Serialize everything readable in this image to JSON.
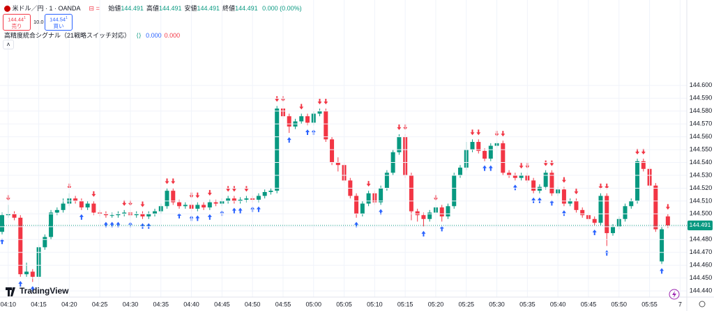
{
  "chart_data": {
    "type": "candlestick",
    "title": "米ドル／円 · 1 · OANDA",
    "ohlc_legend": [
      {
        "label": "始値",
        "value": 144.491
      },
      {
        "label": "高値",
        "value": 144.491
      },
      {
        "label": "安値",
        "value": 144.491
      },
      {
        "label": "終値",
        "value": 144.491
      }
    ],
    "change": "0.000 (0.00%)",
    "sell_button": {
      "price": "144.44",
      "superscript": "1",
      "label": "売り"
    },
    "spread": "10.0",
    "buy_button": {
      "price": "144.54",
      "superscript": "1",
      "label": "買い"
    },
    "indicator": {
      "name": "高精度統合シグナル（21戦略スイッチ対応）",
      "values": [
        {
          "value": "0.000",
          "color": "#2962ff"
        },
        {
          "value": "0.000",
          "color": "#f23645"
        }
      ]
    },
    "brand": "TradingView",
    "up_color": "#089981",
    "down_color": "#f23645",
    "last_price": 144.491,
    "ylim": [
      144.4352,
      144.6665
    ],
    "yticks": [
      {
        "value": 144.44,
        "label": "144.440"
      },
      {
        "value": 144.45,
        "label": "144.450"
      },
      {
        "value": 144.46,
        "label": "144.460"
      },
      {
        "value": 144.47,
        "label": "144.470"
      },
      {
        "value": 144.48,
        "label": "144.480"
      },
      {
        "value": 144.49,
        "label": "144.490"
      },
      {
        "value": 144.5,
        "label": "144.500"
      },
      {
        "value": 144.51,
        "label": "144.510"
      },
      {
        "value": 144.52,
        "label": "144.520"
      },
      {
        "value": 144.53,
        "label": "144.530"
      },
      {
        "value": 144.54,
        "label": "144.540"
      },
      {
        "value": 144.55,
        "label": "144.550"
      },
      {
        "value": 144.56,
        "label": "144.560"
      },
      {
        "value": 144.57,
        "label": "144.570"
      },
      {
        "value": 144.58,
        "label": "144.580"
      },
      {
        "value": 144.59,
        "label": "144.590"
      },
      {
        "value": 144.6,
        "label": "144.600"
      }
    ],
    "grid": true,
    "categories": [
      null,
      "04:10",
      null,
      null,
      null,
      null,
      "04:15",
      null,
      null,
      null,
      null,
      "04:20",
      null,
      null,
      null,
      null,
      "04:25",
      null,
      null,
      null,
      null,
      "04:30",
      null,
      null,
      null,
      null,
      "04:35",
      null,
      null,
      null,
      null,
      "04:40",
      null,
      null,
      null,
      null,
      "04:45",
      null,
      null,
      null,
      null,
      "04:50",
      null,
      null,
      null,
      null,
      "04:55",
      null,
      null,
      null,
      null,
      "05:00",
      null,
      null,
      null,
      null,
      "05:05",
      null,
      null,
      null,
      null,
      "05:10",
      null,
      null,
      null,
      null,
      "05:15",
      null,
      null,
      null,
      null,
      "05:20",
      null,
      null,
      null,
      null,
      "05:25",
      null,
      null,
      null,
      null,
      "05:30",
      null,
      null,
      null,
      null,
      "05:35",
      null,
      null,
      null,
      null,
      "05:40",
      null,
      null,
      null,
      null,
      "05:45",
      null,
      null,
      null,
      null,
      "05:50",
      null,
      null,
      null,
      null,
      "05:55",
      null,
      null,
      null,
      null,
      "7"
    ],
    "ohlc": [
      [
        144.486,
        144.501,
        144.484,
        144.499
      ],
      [
        144.499,
        144.507,
        144.497,
        144.5
      ],
      [
        144.5,
        144.502,
        144.495,
        144.497
      ],
      [
        144.497,
        144.499,
        144.451,
        144.453
      ],
      [
        144.453,
        144.462,
        144.451,
        144.455
      ],
      [
        144.455,
        144.457,
        144.447,
        144.451
      ],
      [
        144.451,
        144.476,
        144.449,
        144.474
      ],
      [
        144.474,
        144.484,
        144.472,
        144.482
      ],
      [
        144.482,
        144.503,
        144.48,
        144.501
      ],
      [
        144.501,
        144.505,
        144.499,
        144.503
      ],
      [
        144.503,
        144.512,
        144.501,
        144.508
      ],
      [
        144.508,
        144.516,
        144.506,
        144.512
      ],
      [
        144.512,
        144.514,
        144.508,
        144.51
      ],
      [
        144.51,
        144.512,
        144.503,
        144.505
      ],
      [
        144.505,
        144.51,
        144.503,
        144.508
      ],
      [
        144.508,
        144.51,
        144.499,
        144.501
      ],
      [
        144.501,
        144.503,
        144.498,
        144.5
      ],
      [
        144.5,
        144.502,
        144.497,
        144.499
      ],
      [
        144.499,
        144.501,
        144.497,
        144.499
      ],
      [
        144.499,
        144.502,
        144.497,
        144.5
      ],
      [
        144.5,
        144.503,
        144.498,
        144.501
      ],
      [
        144.501,
        144.503,
        144.497,
        144.499
      ],
      [
        144.499,
        144.502,
        144.497,
        144.5
      ],
      [
        144.5,
        144.502,
        144.496,
        144.498
      ],
      [
        144.498,
        144.502,
        144.496,
        144.5
      ],
      [
        144.5,
        144.504,
        144.498,
        144.502
      ],
      [
        144.502,
        144.508,
        144.5,
        144.506
      ],
      [
        144.506,
        144.52,
        144.504,
        144.518
      ],
      [
        144.518,
        144.52,
        144.507,
        144.509
      ],
      [
        144.509,
        144.511,
        144.504,
        144.506
      ],
      [
        144.506,
        144.509,
        144.504,
        144.507
      ],
      [
        144.507,
        144.509,
        144.502,
        144.504
      ],
      [
        144.504,
        144.509,
        144.502,
        144.507
      ],
      [
        144.507,
        144.509,
        144.503,
        144.505
      ],
      [
        144.505,
        144.511,
        144.503,
        144.509
      ],
      [
        144.509,
        144.511,
        144.506,
        144.508
      ],
      [
        144.508,
        144.512,
        144.506,
        144.51
      ],
      [
        144.51,
        144.514,
        144.508,
        144.512
      ],
      [
        144.512,
        144.514,
        144.508,
        144.51
      ],
      [
        144.51,
        144.513,
        144.508,
        144.511
      ],
      [
        144.511,
        144.514,
        144.509,
        144.512
      ],
      [
        144.512,
        144.514,
        144.509,
        144.511
      ],
      [
        144.511,
        144.516,
        144.509,
        144.514
      ],
      [
        144.514,
        144.519,
        144.512,
        144.517
      ],
      [
        144.517,
        144.52,
        144.515,
        144.518
      ],
      [
        144.518,
        144.584,
        144.516,
        144.582
      ],
      [
        144.582,
        144.584,
        144.574,
        144.576
      ],
      [
        144.576,
        144.578,
        144.563,
        144.568
      ],
      [
        144.568,
        144.574,
        144.566,
        144.572
      ],
      [
        144.572,
        144.578,
        144.57,
        144.576
      ],
      [
        144.576,
        144.578,
        144.569,
        144.571
      ],
      [
        144.571,
        144.58,
        144.569,
        144.578
      ],
      [
        144.578,
        144.582,
        144.576,
        144.58
      ],
      [
        144.58,
        144.582,
        144.556,
        144.558
      ],
      [
        144.558,
        144.56,
        144.538,
        144.54
      ],
      [
        144.54,
        144.544,
        144.533,
        144.538
      ],
      [
        144.538,
        144.54,
        144.524,
        144.526
      ],
      [
        144.526,
        144.528,
        144.512,
        144.514
      ],
      [
        144.514,
        144.516,
        144.497,
        144.5
      ],
      [
        144.5,
        144.51,
        144.498,
        144.508
      ],
      [
        144.508,
        144.518,
        144.506,
        144.516
      ],
      [
        144.516,
        144.518,
        144.507,
        144.509
      ],
      [
        144.509,
        144.522,
        144.507,
        144.52
      ],
      [
        144.52,
        144.534,
        144.518,
        144.532
      ],
      [
        144.532,
        144.55,
        144.53,
        144.548
      ],
      [
        144.548,
        144.562,
        144.546,
        144.56
      ],
      [
        144.56,
        144.562,
        144.528,
        144.53
      ],
      [
        144.53,
        144.532,
        144.495,
        144.502
      ],
      [
        144.502,
        144.504,
        144.494,
        144.499
      ],
      [
        144.499,
        144.501,
        144.49,
        144.496
      ],
      [
        144.496,
        144.503,
        144.494,
        144.501
      ],
      [
        144.501,
        144.507,
        144.499,
        144.505
      ],
      [
        144.505,
        144.507,
        144.494,
        144.498
      ],
      [
        144.498,
        144.508,
        144.496,
        144.506
      ],
      [
        144.506,
        144.532,
        144.504,
        144.53
      ],
      [
        144.53,
        144.538,
        144.528,
        144.536
      ],
      [
        144.536,
        144.556,
        144.534,
        144.55
      ],
      [
        144.55,
        144.558,
        144.548,
        144.556
      ],
      [
        144.556,
        144.558,
        144.547,
        144.549
      ],
      [
        144.549,
        144.551,
        144.541,
        144.543
      ],
      [
        144.543,
        144.555,
        144.541,
        144.553
      ],
      [
        144.553,
        144.557,
        144.551,
        144.555
      ],
      [
        144.555,
        144.557,
        144.53,
        144.532
      ],
      [
        144.532,
        144.534,
        144.528,
        144.53
      ],
      [
        144.53,
        144.532,
        144.526,
        144.528
      ],
      [
        144.528,
        144.532,
        144.526,
        144.53
      ],
      [
        144.53,
        144.532,
        144.524,
        144.526
      ],
      [
        144.526,
        144.528,
        144.516,
        144.518
      ],
      [
        144.518,
        144.523,
        144.516,
        144.521
      ],
      [
        144.521,
        144.534,
        144.519,
        144.532
      ],
      [
        144.532,
        144.534,
        144.514,
        144.516
      ],
      [
        144.516,
        144.521,
        144.514,
        144.519
      ],
      [
        144.519,
        144.521,
        144.506,
        144.508
      ],
      [
        144.508,
        144.512,
        144.506,
        144.51
      ],
      [
        144.51,
        144.512,
        144.501,
        144.503
      ],
      [
        144.503,
        144.505,
        144.497,
        144.499
      ],
      [
        144.499,
        144.501,
        144.494,
        144.496
      ],
      [
        144.496,
        144.498,
        144.491,
        144.493
      ],
      [
        144.493,
        144.516,
        144.491,
        144.514
      ],
      [
        144.514,
        144.516,
        144.475,
        144.485
      ],
      [
        144.485,
        144.492,
        144.483,
        144.49
      ],
      [
        144.49,
        144.498,
        144.488,
        144.496
      ],
      [
        144.496,
        144.508,
        144.494,
        144.506
      ],
      [
        144.506,
        144.512,
        144.504,
        144.51
      ],
      [
        144.51,
        144.543,
        144.508,
        144.541
      ],
      [
        144.541,
        144.543,
        144.533,
        144.535
      ],
      [
        144.535,
        144.537,
        144.52,
        144.522
      ],
      [
        144.522,
        144.524,
        144.486,
        144.488
      ],
      [
        144.463,
        144.49,
        144.461,
        144.488
      ],
      [
        144.498,
        144.5,
        144.489,
        144.491
      ],
      null,
      null
    ]
  }
}
